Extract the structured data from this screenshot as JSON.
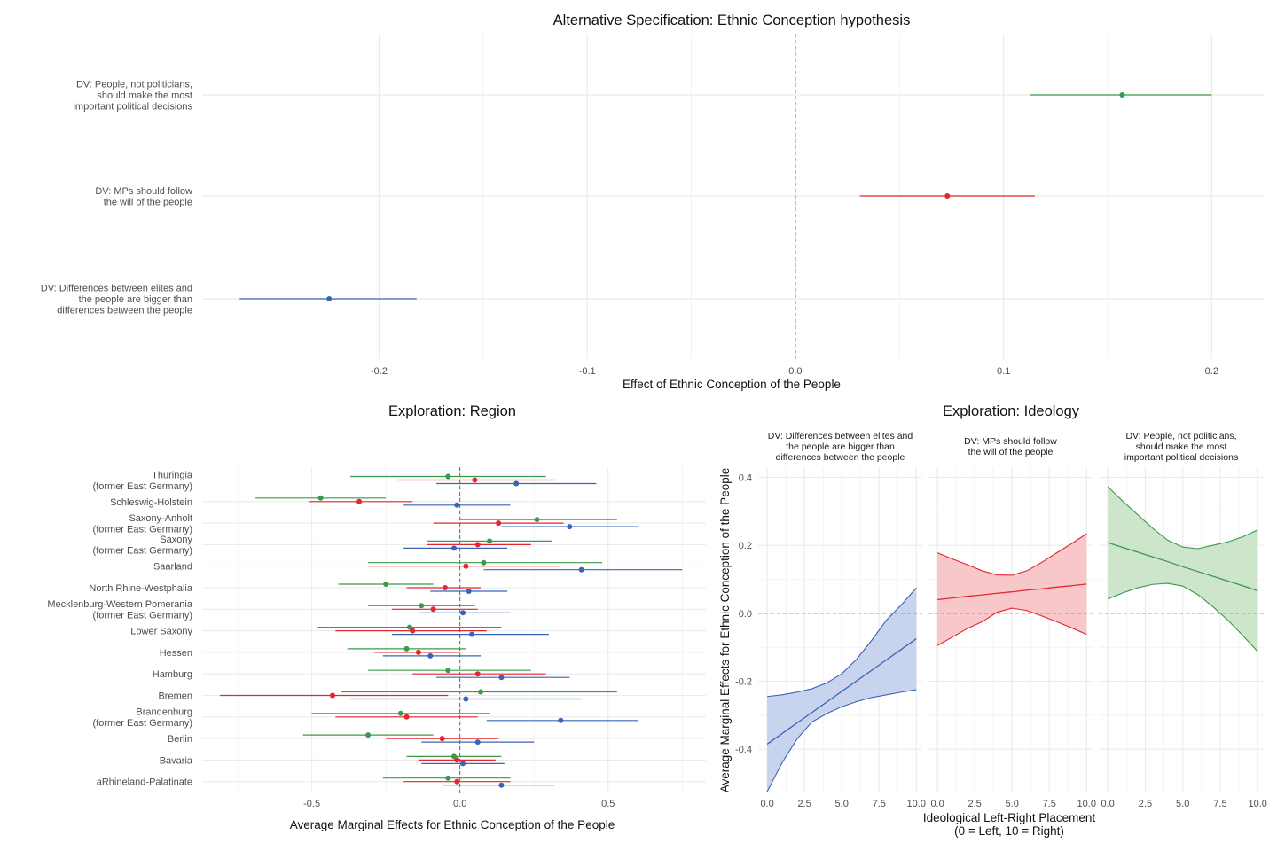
{
  "colors": {
    "blue": "#3a64b6",
    "red": "#e3262f",
    "green": "#3b9a4a",
    "grid": "#ebebeb",
    "axis_text": "#4d4d4d"
  },
  "chart_data": [
    {
      "type": "scatter",
      "subtype": "coefficient-plot",
      "title": "Alternative Specification: Ethnic Conception hypothesis",
      "xlabel": "Effect of Ethnic Conception of the People",
      "ylabel": "",
      "xlim": [
        -0.285,
        0.225
      ],
      "x_ticks": [
        -0.2,
        -0.1,
        0.0,
        0.1,
        0.2
      ],
      "x_tick_labels": [
        "-0.2",
        "-0.1",
        "0.0",
        "0.1",
        "0.2"
      ],
      "reference_line": 0,
      "grid": true,
      "categories": [
        "DV: People, not politicians,\nshould make the most\nimportant political decisions",
        "DV: MPs should follow\nthe will of the people",
        "DV: Differences between elites and\nthe people are bigger than\ndifferences between the people"
      ],
      "series": [
        {
          "color": "green",
          "category_index": 0,
          "estimate": 0.157,
          "lower": 0.113,
          "upper": 0.2
        },
        {
          "color": "red",
          "category_index": 1,
          "estimate": 0.073,
          "lower": 0.031,
          "upper": 0.115
        },
        {
          "color": "blue",
          "category_index": 2,
          "estimate": -0.224,
          "lower": -0.267,
          "upper": -0.182
        }
      ]
    },
    {
      "type": "scatter",
      "subtype": "coefficient-plot",
      "title": "Exploration: Region",
      "xlabel": "Average Marginal Effects for Ethnic Conception of the People",
      "ylabel": "",
      "xlim": [
        -0.87,
        0.83
      ],
      "x_ticks": [
        -0.5,
        0.0,
        0.5
      ],
      "x_tick_labels": [
        "-0.5",
        "0.0",
        "0.5"
      ],
      "reference_line": 0,
      "grid": true,
      "categories": [
        "Thuringia\n(former East Germany)",
        "Schleswig-Holstein",
        "Saxony-Anholt\n(former East Germany)",
        "Saxony\n(former East Germany)",
        "Saarland",
        "North Rhine-Westphalia",
        "Mecklenburg-Western Pomerania\n(former East Germany)",
        "Lower Saxony",
        "Hessen",
        "Hamburg",
        "Bremen",
        "Brandenburg\n(former East Germany)",
        "Berlin",
        "Bavaria",
        "aRhineland-Palatinate"
      ],
      "series": [
        {
          "color": "green",
          "estimates": [
            -0.04,
            -0.47,
            0.26,
            0.1,
            0.08,
            -0.25,
            -0.13,
            -0.17,
            -0.18,
            -0.04,
            0.07,
            -0.2,
            -0.31,
            -0.02,
            -0.04
          ],
          "lower": [
            -0.37,
            -0.69,
            0.0,
            -0.11,
            -0.31,
            -0.41,
            -0.31,
            -0.48,
            -0.38,
            -0.31,
            -0.4,
            -0.5,
            -0.53,
            -0.18,
            -0.26
          ],
          "upper": [
            0.29,
            -0.25,
            0.53,
            0.31,
            0.48,
            -0.09,
            0.05,
            0.14,
            0.02,
            0.24,
            0.53,
            0.1,
            -0.09,
            0.14,
            0.17
          ]
        },
        {
          "color": "red",
          "estimates": [
            0.05,
            -0.34,
            0.13,
            0.06,
            0.02,
            -0.05,
            -0.09,
            -0.16,
            -0.14,
            0.06,
            -0.43,
            -0.18,
            -0.06,
            -0.01,
            -0.01
          ],
          "lower": [
            -0.21,
            -0.51,
            -0.09,
            -0.11,
            -0.31,
            -0.18,
            -0.23,
            -0.42,
            -0.29,
            -0.16,
            -0.81,
            -0.42,
            -0.25,
            -0.14,
            -0.19
          ],
          "upper": [
            0.32,
            -0.16,
            0.35,
            0.24,
            0.34,
            0.07,
            0.06,
            0.09,
            0.0,
            0.29,
            -0.04,
            0.06,
            0.13,
            0.12,
            0.17
          ]
        },
        {
          "color": "blue",
          "estimates": [
            0.19,
            -0.01,
            0.37,
            -0.02,
            0.41,
            0.03,
            0.01,
            0.04,
            -0.1,
            0.14,
            0.02,
            0.34,
            0.06,
            0.01,
            0.14
          ],
          "lower": [
            -0.08,
            -0.19,
            0.14,
            -0.19,
            0.08,
            -0.1,
            -0.14,
            -0.23,
            -0.26,
            -0.08,
            -0.37,
            0.09,
            -0.13,
            -0.13,
            -0.06
          ],
          "upper": [
            0.46,
            0.17,
            0.6,
            0.16,
            0.75,
            0.16,
            0.17,
            0.3,
            0.07,
            0.37,
            0.41,
            0.6,
            0.25,
            0.15,
            0.32
          ]
        }
      ]
    },
    {
      "type": "area",
      "subtype": "faceted-line-with-ci",
      "title": "Exploration: Ideology",
      "xlabel": "Ideological Left-Right Placement\n(0 = Left, 10 = Right)",
      "ylabel": "Average Marginal Effects for Ethnic Conception of the People",
      "xlim": [
        -0.6,
        10.4
      ],
      "ylim": [
        -0.53,
        0.43
      ],
      "x_ticks": [
        0,
        2.5,
        5,
        7.5,
        10
      ],
      "x_tick_labels": [
        "0.0",
        "2.5",
        "5.0",
        "7.5",
        "10.0"
      ],
      "y_ticks": [
        -0.4,
        -0.2,
        0.0,
        0.2,
        0.4
      ],
      "y_tick_labels": [
        "-0.4",
        "-0.2",
        "0.0",
        "0.2",
        "0.4"
      ],
      "reference_line": 0,
      "grid": true,
      "x": [
        0,
        1,
        2,
        3,
        4,
        5,
        6,
        7,
        8,
        9,
        10
      ],
      "facets": [
        {
          "title": "DV: Differences between elites and\nthe people are bigger than\ndifferences between the people",
          "color": "blue",
          "estimate": [
            -0.385,
            -0.354,
            -0.323,
            -0.292,
            -0.261,
            -0.23,
            -0.199,
            -0.168,
            -0.137,
            -0.106,
            -0.075
          ],
          "lower": [
            -0.525,
            -0.44,
            -0.37,
            -0.32,
            -0.295,
            -0.275,
            -0.26,
            -0.248,
            -0.24,
            -0.232,
            -0.225
          ],
          "upper": [
            -0.245,
            -0.24,
            -0.232,
            -0.222,
            -0.205,
            -0.178,
            -0.135,
            -0.08,
            -0.02,
            0.025,
            0.075
          ]
        },
        {
          "title": "DV: MPs should follow\nthe will of the people",
          "color": "red",
          "estimate": [
            0.04,
            0.045,
            0.05,
            0.054,
            0.059,
            0.063,
            0.068,
            0.072,
            0.077,
            0.081,
            0.086
          ],
          "lower": [
            -0.095,
            -0.07,
            -0.045,
            -0.025,
            0.003,
            0.015,
            0.008,
            -0.008,
            -0.025,
            -0.043,
            -0.062
          ],
          "upper": [
            0.178,
            0.16,
            0.143,
            0.125,
            0.113,
            0.112,
            0.125,
            0.15,
            0.178,
            0.205,
            0.234
          ]
        },
        {
          "title": "DV: People, not politicians,\nshould make the most\nimportant political decisions",
          "color": "green",
          "estimate": [
            0.208,
            0.194,
            0.18,
            0.166,
            0.152,
            0.137,
            0.123,
            0.109,
            0.095,
            0.081,
            0.066
          ],
          "lower": [
            0.042,
            0.06,
            0.075,
            0.085,
            0.088,
            0.08,
            0.055,
            0.02,
            -0.02,
            -0.065,
            -0.113
          ],
          "upper": [
            0.373,
            0.33,
            0.29,
            0.25,
            0.215,
            0.195,
            0.19,
            0.2,
            0.21,
            0.225,
            0.245
          ]
        }
      ]
    }
  ]
}
